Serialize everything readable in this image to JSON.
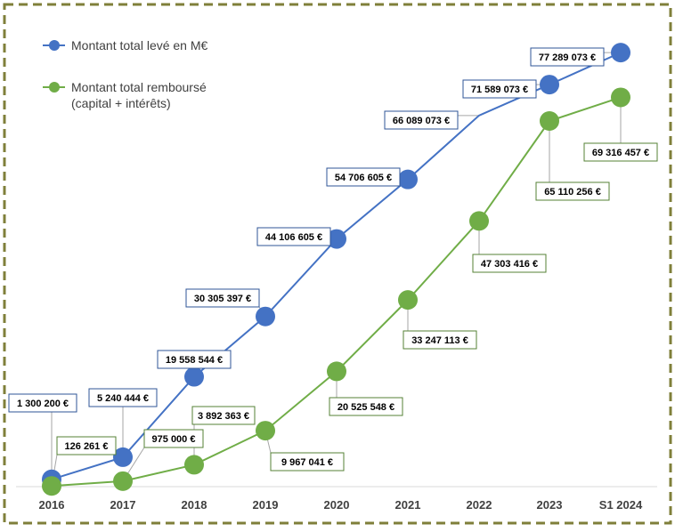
{
  "colors": {
    "blue": "#4472c4",
    "green": "#70ad47",
    "blue_label_border": "#2f5597",
    "green_label_border": "#548235",
    "frame": "#7f7f3a",
    "leader": "#a6a6a6",
    "axis": "#d9d9d9"
  },
  "chart_data": {
    "type": "line",
    "categories": [
      "2016",
      "2017",
      "2018",
      "2019",
      "2020",
      "2021",
      "2022",
      "2023",
      "S1 2024"
    ],
    "legend_position": "top-left",
    "grid": false,
    "ylim": [
      0,
      80000000
    ],
    "series": [
      {
        "name": "Montant total levé en M€",
        "color": "#4472c4",
        "values": [
          1300200,
          5240444,
          19558544,
          30305397,
          44106605,
          54706605,
          66089073,
          71589073,
          77289073
        ],
        "markers": [
          true,
          true,
          true,
          true,
          true,
          true,
          false,
          true,
          true
        ],
        "labels": [
          "1 300 200 €",
          "5 240 444 €",
          "19 558 544 €",
          "30 305 397 €",
          "44 106 605 €",
          "54 706 605 €",
          "66 089 073 €",
          "71 589 073 €",
          "77 289 073 €"
        ]
      },
      {
        "name": "Montant total remboursé (capital + intérêts)",
        "name_lines": [
          "Montant total remboursé",
          "(capital + intérêts)"
        ],
        "color": "#70ad47",
        "values": [
          126261,
          975000,
          3892363,
          9967041,
          20525548,
          33247113,
          47303416,
          65110256,
          69316457
        ],
        "markers": [
          true,
          true,
          true,
          true,
          true,
          true,
          true,
          true,
          true
        ],
        "labels": [
          "126 261 €",
          "975 000 €",
          "3 892 363 €",
          "9 967 041 €",
          "20 525 548 €",
          "33 247 113 €",
          "47 303 416 €",
          "65 110 256 €",
          "69 316 457 €"
        ]
      }
    ]
  }
}
